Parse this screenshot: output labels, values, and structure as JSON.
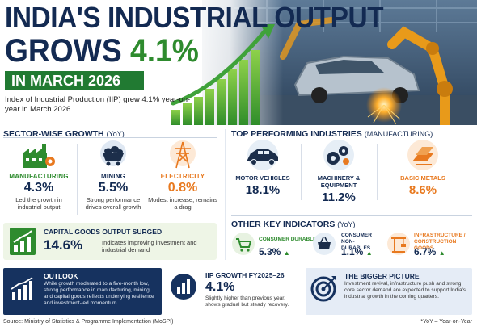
{
  "header": {
    "title_line1": "INDIA'S INDUSTRIAL OUTPUT",
    "title_line2_prefix": "GROWS ",
    "title_line2_highlight": "4.1%",
    "banner": "IN MARCH 2026",
    "intro": "Index of Industrial Production (IIP) grew 4.1% year-on-year in March 2026."
  },
  "sector_section": {
    "title": "SECTOR-WISE GROWTH",
    "suffix": "(YoY)",
    "items": [
      {
        "name": "MANUFACTURING",
        "value": "4.3%",
        "desc": "Led the growth in industrial output",
        "icon": "factory-icon"
      },
      {
        "name": "MINING",
        "value": "5.5%",
        "desc": "Strong performance drives overall growth",
        "icon": "mining-cart-icon"
      },
      {
        "name": "ELECTRICITY",
        "value": "0.8%",
        "desc": "Modest increase, remains a drag",
        "icon": "power-tower-icon"
      }
    ]
  },
  "capital_goods": {
    "title": "CAPITAL GOODS OUTPUT SURGED",
    "value": "14.6%",
    "desc": "Indicates improving investment and industrial demand"
  },
  "top_industries": {
    "title": "TOP PERFORMING INDUSTRIES",
    "suffix": "(MANUFACTURING)",
    "items": [
      {
        "name": "MOTOR VEHICLES",
        "value": "18.1%",
        "icon": "car-icon"
      },
      {
        "name": "MACHINERY & EQUIPMENT",
        "value": "11.2%",
        "icon": "gears-icon"
      },
      {
        "name": "BASIC METALS",
        "value": "8.6%",
        "icon": "metal-bars-icon"
      }
    ]
  },
  "other_indicators": {
    "title": "OTHER KEY INDICATORS",
    "suffix": "(YoY)",
    "items": [
      {
        "name": "CONSUMER DURABLES",
        "value": "5.3%",
        "icon": "shopping-cart-icon"
      },
      {
        "name": "CONSUMER NON-DURABLES",
        "value": "1.1%",
        "icon": "basket-icon"
      },
      {
        "name": "INFRASTRUCTURE / CONSTRUCTION GOODS",
        "value": "6.7%",
        "icon": "crane-icon"
      }
    ]
  },
  "outlook": {
    "title": "OUTLOOK",
    "text": "While growth moderated to a five-month low, strong performance in manufacturing, mining and capital goods reflects underlying resilience and investment-led momentum."
  },
  "fy_growth": {
    "title": "IIP GROWTH FY2025–26",
    "value": "4.1%",
    "desc": "Slightly higher than previous year, shows gradual but steady recovery."
  },
  "bigger_picture": {
    "title": "THE BIGGER PICTURE",
    "text": "Investment revival, infrastructure push and strong core sector demand are expected to support India's industrial growth in the coming quarters."
  },
  "footer": {
    "source": "Source: Ministry of Statistics & Programme Implementation (MoSPI)",
    "note": "*YoY – Year-on-Year"
  },
  "colors": {
    "navy": "#132a52",
    "green": "#217a32",
    "orange": "#e8791f",
    "light_green": "#eef5e6"
  }
}
